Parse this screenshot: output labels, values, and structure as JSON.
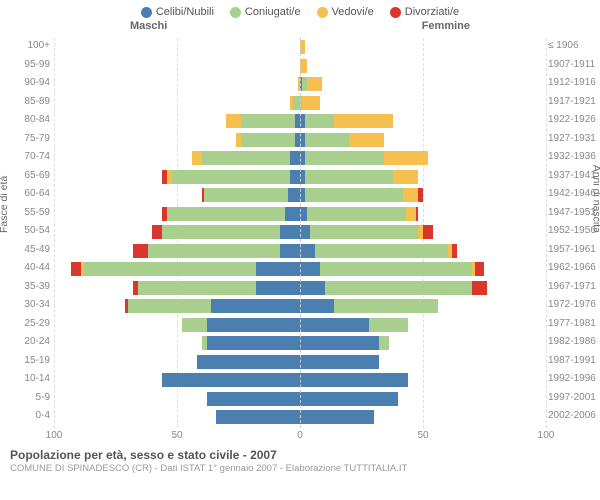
{
  "legend": [
    {
      "label": "Celibi/Nubili",
      "color": "#4a7fb0"
    },
    {
      "label": "Coniugati/e",
      "color": "#a8cf8e"
    },
    {
      "label": "Vedovi/e",
      "color": "#f5c04e"
    },
    {
      "label": "Divorziati/e",
      "color": "#d9362e"
    }
  ],
  "headers": {
    "male": "Maschi",
    "female": "Femmine"
  },
  "y_left_title": "Fasce di età",
  "y_right_title": "Anni di nascita",
  "x_max": 100,
  "x_ticks": [
    100,
    50,
    0,
    50,
    100
  ],
  "grid_at": [
    50,
    100
  ],
  "colors": {
    "celibi": "#4a7fb0",
    "coniugati": "#a8cf8e",
    "vedovi": "#f5c04e",
    "divorziati": "#d9362e",
    "grid": "#dddddd",
    "center": "#cccccc",
    "text": "#888888",
    "bg": "#ffffff"
  },
  "title": "Popolazione per età, sesso e stato civile - 2007",
  "subtitle": "COMUNE DI SPINADESCO (CR) - Dati ISTAT 1° gennaio 2007 - Elaborazione TUTTITALIA.IT",
  "rows": [
    {
      "age": "100+",
      "birth": "≤ 1906",
      "m": {
        "c": 0,
        "g": 0,
        "v": 0,
        "d": 0
      },
      "f": {
        "c": 0,
        "g": 0,
        "v": 2,
        "d": 0
      }
    },
    {
      "age": "95-99",
      "birth": "1907-1911",
      "m": {
        "c": 0,
        "g": 0,
        "v": 0,
        "d": 0
      },
      "f": {
        "c": 0,
        "g": 0,
        "v": 3,
        "d": 0
      }
    },
    {
      "age": "90-94",
      "birth": "1912-1916",
      "m": {
        "c": 0,
        "g": 0,
        "v": 1,
        "d": 0
      },
      "f": {
        "c": 1,
        "g": 2,
        "v": 6,
        "d": 0
      }
    },
    {
      "age": "85-89",
      "birth": "1917-1921",
      "m": {
        "c": 0,
        "g": 3,
        "v": 1,
        "d": 0
      },
      "f": {
        "c": 0,
        "g": 1,
        "v": 7,
        "d": 0
      }
    },
    {
      "age": "80-84",
      "birth": "1922-1926",
      "m": {
        "c": 2,
        "g": 22,
        "v": 6,
        "d": 0
      },
      "f": {
        "c": 2,
        "g": 12,
        "v": 24,
        "d": 0
      }
    },
    {
      "age": "75-79",
      "birth": "1927-1931",
      "m": {
        "c": 2,
        "g": 22,
        "v": 2,
        "d": 0
      },
      "f": {
        "c": 2,
        "g": 18,
        "v": 14,
        "d": 0
      }
    },
    {
      "age": "70-74",
      "birth": "1932-1936",
      "m": {
        "c": 4,
        "g": 36,
        "v": 4,
        "d": 0
      },
      "f": {
        "c": 2,
        "g": 32,
        "v": 18,
        "d": 0
      }
    },
    {
      "age": "65-69",
      "birth": "1937-1941",
      "m": {
        "c": 4,
        "g": 48,
        "v": 2,
        "d": 2
      },
      "f": {
        "c": 2,
        "g": 36,
        "v": 10,
        "d": 0
      }
    },
    {
      "age": "60-64",
      "birth": "1942-1946",
      "m": {
        "c": 5,
        "g": 34,
        "v": 0,
        "d": 1
      },
      "f": {
        "c": 2,
        "g": 40,
        "v": 6,
        "d": 2
      }
    },
    {
      "age": "55-59",
      "birth": "1947-1951",
      "m": {
        "c": 6,
        "g": 48,
        "v": 0,
        "d": 2
      },
      "f": {
        "c": 3,
        "g": 40,
        "v": 4,
        "d": 1
      }
    },
    {
      "age": "50-54",
      "birth": "1952-1956",
      "m": {
        "c": 8,
        "g": 48,
        "v": 0,
        "d": 4
      },
      "f": {
        "c": 4,
        "g": 44,
        "v": 2,
        "d": 4
      }
    },
    {
      "age": "45-49",
      "birth": "1957-1961",
      "m": {
        "c": 8,
        "g": 54,
        "v": 0,
        "d": 6
      },
      "f": {
        "c": 6,
        "g": 54,
        "v": 2,
        "d": 2
      }
    },
    {
      "age": "40-44",
      "birth": "1962-1966",
      "m": {
        "c": 18,
        "g": 70,
        "v": 1,
        "d": 4
      },
      "f": {
        "c": 8,
        "g": 62,
        "v": 1,
        "d": 4
      }
    },
    {
      "age": "35-39",
      "birth": "1967-1971",
      "m": {
        "c": 18,
        "g": 48,
        "v": 0,
        "d": 2
      },
      "f": {
        "c": 10,
        "g": 60,
        "v": 0,
        "d": 6
      }
    },
    {
      "age": "30-34",
      "birth": "1972-1976",
      "m": {
        "c": 36,
        "g": 34,
        "v": 0,
        "d": 1
      },
      "f": {
        "c": 14,
        "g": 42,
        "v": 0,
        "d": 0
      }
    },
    {
      "age": "25-29",
      "birth": "1977-1981",
      "m": {
        "c": 38,
        "g": 10,
        "v": 0,
        "d": 0
      },
      "f": {
        "c": 28,
        "g": 16,
        "v": 0,
        "d": 0
      }
    },
    {
      "age": "20-24",
      "birth": "1982-1986",
      "m": {
        "c": 38,
        "g": 2,
        "v": 0,
        "d": 0
      },
      "f": {
        "c": 32,
        "g": 4,
        "v": 0,
        "d": 0
      }
    },
    {
      "age": "15-19",
      "birth": "1987-1991",
      "m": {
        "c": 42,
        "g": 0,
        "v": 0,
        "d": 0
      },
      "f": {
        "c": 32,
        "g": 0,
        "v": 0,
        "d": 0
      }
    },
    {
      "age": "10-14",
      "birth": "1992-1996",
      "m": {
        "c": 56,
        "g": 0,
        "v": 0,
        "d": 0
      },
      "f": {
        "c": 44,
        "g": 0,
        "v": 0,
        "d": 0
      }
    },
    {
      "age": "5-9",
      "birth": "1997-2001",
      "m": {
        "c": 38,
        "g": 0,
        "v": 0,
        "d": 0
      },
      "f": {
        "c": 40,
        "g": 0,
        "v": 0,
        "d": 0
      }
    },
    {
      "age": "0-4",
      "birth": "2002-2006",
      "m": {
        "c": 34,
        "g": 0,
        "v": 0,
        "d": 0
      },
      "f": {
        "c": 30,
        "g": 0,
        "v": 0,
        "d": 0
      }
    }
  ]
}
